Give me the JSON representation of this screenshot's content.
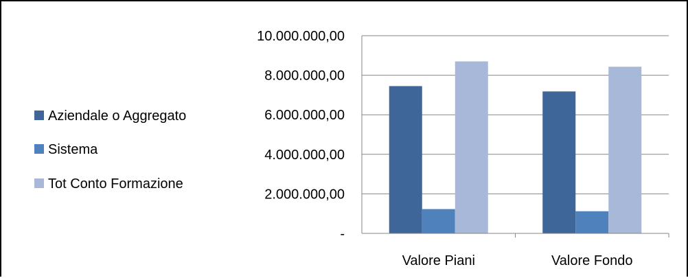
{
  "chart_data": {
    "type": "bar",
    "title": "",
    "xlabel": "",
    "ylabel": "",
    "categories": [
      "Valore Piani",
      "Valore Fondo"
    ],
    "series": [
      {
        "name": "Aziendale o Aggregato",
        "values": [
          7450000,
          7180000
        ],
        "color": "#3e6699"
      },
      {
        "name": "Sistema",
        "values": [
          1230000,
          1120000
        ],
        "color": "#4f81bd"
      },
      {
        "name": "Tot Conto Formazione",
        "values": [
          8700000,
          8430000
        ],
        "color": "#a7b8d8"
      }
    ],
    "ylim": [
      0,
      10000000
    ],
    "y_ticks": [
      0,
      2000000,
      4000000,
      6000000,
      8000000,
      10000000
    ],
    "y_tick_labels": [
      "-",
      "2.000.000,00",
      "4.000.000,00",
      "6.000.000,00",
      "8.000.000,00",
      "10.000.000,00"
    ],
    "grid": true,
    "legend_position": "left"
  }
}
